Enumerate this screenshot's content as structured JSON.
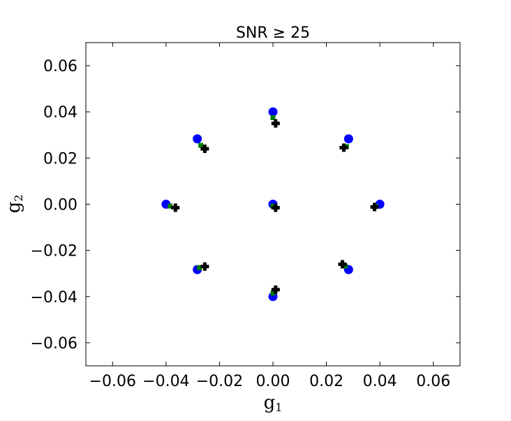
{
  "chart_data": {
    "type": "scatter",
    "title": "SNR ≥ 25",
    "xlabel": {
      "base": "g",
      "sub": "1"
    },
    "ylabel": {
      "base": "g",
      "sub": "2"
    },
    "xlim": [
      -0.07,
      0.07
    ],
    "ylim": [
      -0.07,
      0.07
    ],
    "xticks": [
      -0.06,
      -0.04,
      -0.02,
      0.0,
      0.02,
      0.04,
      0.06
    ],
    "yticks": [
      -0.06,
      -0.04,
      -0.02,
      0.0,
      0.02,
      0.04,
      0.06
    ],
    "xtick_labels": [
      "−0.06",
      "−0.04",
      "−0.02",
      "0.00",
      "0.02",
      "0.04",
      "0.06"
    ],
    "ytick_labels": [
      "−0.06",
      "−0.04",
      "−0.02",
      "0.00",
      "0.02",
      "0.04",
      "0.06"
    ],
    "grid": false,
    "series": [
      {
        "marker": "circle",
        "color": "#0000ff",
        "x": [
          0.0,
          0.0,
          0.0283,
          0.04,
          0.0283,
          0.0,
          -0.0283,
          -0.04,
          -0.0283
        ],
        "y": [
          0.0,
          0.04,
          0.0283,
          0.0,
          -0.0283,
          -0.04,
          -0.0283,
          0.0,
          0.0283
        ]
      },
      {
        "marker": "square",
        "color": "#008000",
        "x": [
          0.0,
          0.0,
          0.0275,
          0.0385,
          0.027,
          0.0,
          -0.0275,
          -0.0385,
          -0.027
        ],
        "y": [
          -0.0008,
          0.0375,
          0.025,
          -0.001,
          -0.0268,
          -0.0385,
          -0.0275,
          -0.0008,
          0.0255
        ]
      },
      {
        "marker": "plus",
        "color": "#000000",
        "x": [
          0.001,
          0.001,
          0.0265,
          0.038,
          0.026,
          0.001,
          -0.0255,
          -0.0365,
          -0.0255
        ],
        "y": [
          -0.0015,
          0.035,
          0.0245,
          -0.0012,
          -0.026,
          -0.037,
          -0.027,
          -0.0015,
          0.024
        ]
      }
    ]
  }
}
